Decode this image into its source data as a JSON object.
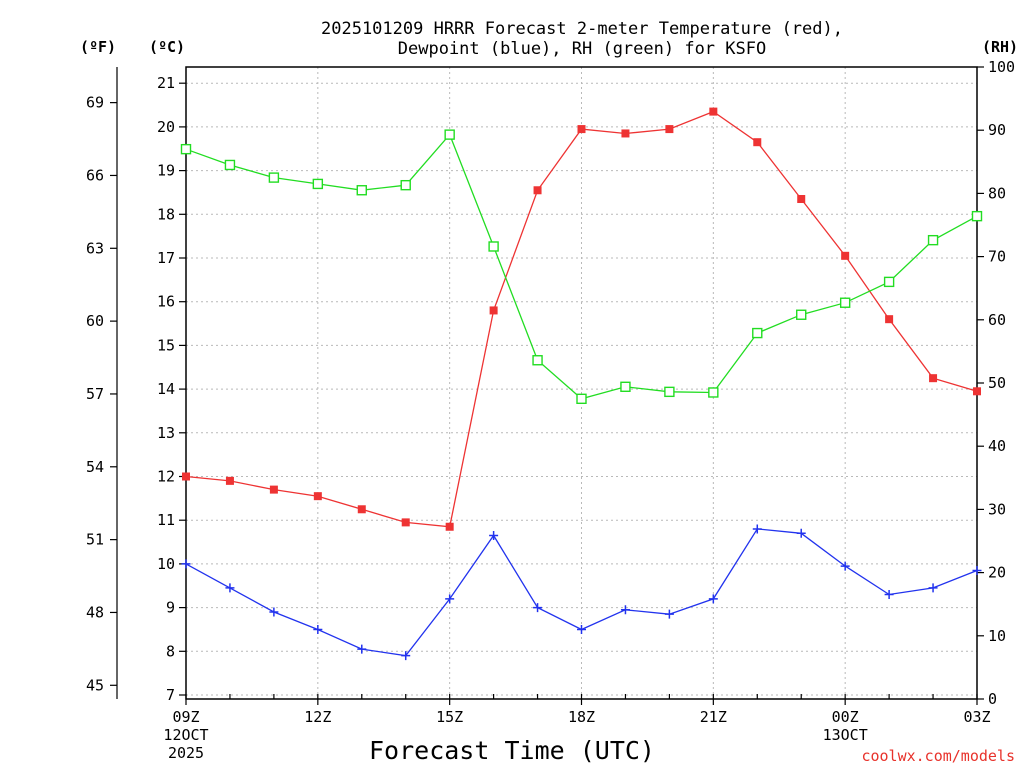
{
  "chart_data": {
    "type": "line",
    "title_lines": [
      "2025101209 HRRR Forecast 2-meter Temperature (red),",
      "Dewpoint (blue), RH (green) for KSFO"
    ],
    "xlabel": "Forecast Time (UTC)",
    "credit": "coolwx.com/models",
    "units": {
      "fahrenheit": "(ºF)",
      "celsius": "(ºC)",
      "rh": "(RH)"
    },
    "x": [
      "09Z",
      "10Z",
      "11Z",
      "12Z",
      "13Z",
      "14Z",
      "15Z",
      "16Z",
      "17Z",
      "18Z",
      "19Z",
      "20Z",
      "21Z",
      "22Z",
      "23Z",
      "00Z",
      "01Z",
      "02Z",
      "03Z"
    ],
    "x_ticks": [
      {
        "index": 0,
        "lines": [
          "09Z",
          "12OCT",
          "2025"
        ]
      },
      {
        "index": 3,
        "lines": [
          "12Z"
        ]
      },
      {
        "index": 6,
        "lines": [
          "15Z"
        ]
      },
      {
        "index": 9,
        "lines": [
          "18Z"
        ]
      },
      {
        "index": 12,
        "lines": [
          "21Z"
        ]
      },
      {
        "index": 15,
        "lines": [
          "00Z",
          "13OCT"
        ]
      },
      {
        "index": 18,
        "lines": [
          "03Z"
        ]
      }
    ],
    "celsius_axis": {
      "ylim": [
        7,
        21.5
      ],
      "ticks": [
        7,
        8,
        9,
        10,
        11,
        12,
        13,
        14,
        15,
        16,
        17,
        18,
        19,
        20,
        21
      ]
    },
    "fahrenheit_axis": {
      "ticks": [
        45,
        48,
        51,
        54,
        57,
        60,
        63,
        66,
        69
      ]
    },
    "rh_axis": {
      "ylim": [
        0,
        100
      ],
      "ticks": [
        0,
        10,
        20,
        30,
        40,
        50,
        60,
        70,
        80,
        90,
        100
      ]
    },
    "grid": true,
    "series": [
      {
        "name": "Temperature",
        "axis": "celsius",
        "color": "#ee3333",
        "marker": "filled-square",
        "values": [
          12.0,
          11.9,
          11.7,
          11.55,
          11.25,
          10.95,
          10.85,
          15.8,
          18.55,
          19.95,
          19.85,
          19.95,
          20.35,
          19.65,
          18.35,
          17.05,
          15.6,
          14.25,
          13.95
        ]
      },
      {
        "name": "Dewpoint",
        "axis": "celsius",
        "color": "#2233ee",
        "marker": "plus",
        "values": [
          10.0,
          9.45,
          8.9,
          8.5,
          8.05,
          7.9,
          9.2,
          10.65,
          9.0,
          8.5,
          8.95,
          8.85,
          9.2,
          10.8,
          10.7,
          9.95,
          9.3,
          9.45,
          9.85
        ]
      },
      {
        "name": "RH",
        "axis": "rh",
        "color": "#22dd22",
        "marker": "open-square",
        "values": [
          87,
          84.5,
          82.5,
          81.5,
          80.5,
          81.3,
          89.3,
          71.6,
          53.6,
          47.5,
          49.4,
          48.6,
          48.5,
          57.9,
          60.8,
          62.7,
          66,
          72.6,
          76.4
        ]
      }
    ]
  }
}
